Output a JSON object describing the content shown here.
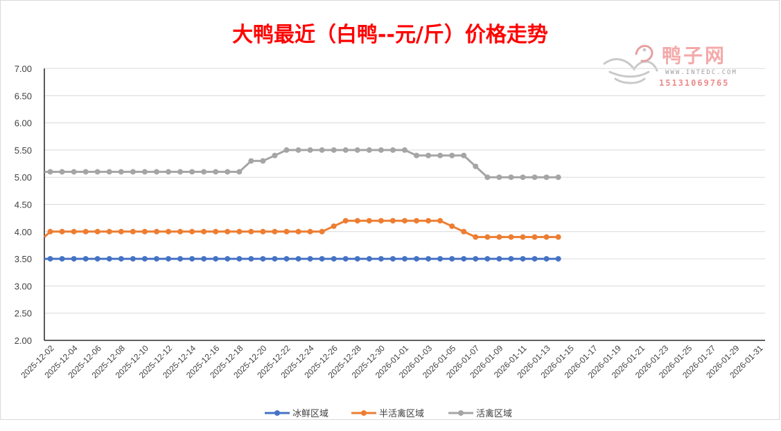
{
  "chart_data": {
    "type": "line",
    "title": "大鸭最近（白鸭--元/斤）价格走势",
    "xlabel": "",
    "ylabel": "",
    "ylim": [
      2.0,
      7.0
    ],
    "y_ticks": [
      "7.00",
      "6.50",
      "6.00",
      "5.50",
      "5.00",
      "4.50",
      "4.00",
      "3.50",
      "3.00",
      "2.50",
      "2.00"
    ],
    "x_start": "2025-12-02",
    "x_end": "2026-01-31",
    "x_tick_labels": [
      "2025-12-02",
      "2025-12-04",
      "2025-12-06",
      "2025-12-08",
      "2025-12-10",
      "2025-12-12",
      "2025-12-14",
      "2025-12-16",
      "2025-12-18",
      "2025-12-20",
      "2025-12-22",
      "2025-12-24",
      "2025-12-26",
      "2025-12-28",
      "2025-12-30",
      "2026-01-01",
      "2026-01-03",
      "2026-01-05",
      "2026-01-07",
      "2026-01-09",
      "2026-01-11",
      "2026-01-13",
      "2026-01-15",
      "2026-01-17",
      "2026-01-19",
      "2026-01-21",
      "2026-01-23",
      "2026-01-25",
      "2026-01-27",
      "2026-01-29",
      "2026-01-31"
    ],
    "grid": true,
    "legend_position": "bottom",
    "series": [
      {
        "name": "冰鲜区域",
        "color": "#4472c4",
        "points": [
          [
            "2025-12-02",
            3.5
          ],
          [
            "2025-12-03",
            3.5
          ],
          [
            "2025-12-04",
            3.5
          ],
          [
            "2025-12-05",
            3.5
          ],
          [
            "2025-12-06",
            3.5
          ],
          [
            "2025-12-07",
            3.5
          ],
          [
            "2025-12-08",
            3.5
          ],
          [
            "2025-12-09",
            3.5
          ],
          [
            "2025-12-10",
            3.5
          ],
          [
            "2025-12-11",
            3.5
          ],
          [
            "2025-12-12",
            3.5
          ],
          [
            "2025-12-13",
            3.5
          ],
          [
            "2025-12-14",
            3.5
          ],
          [
            "2025-12-15",
            3.5
          ],
          [
            "2025-12-16",
            3.5
          ],
          [
            "2025-12-17",
            3.5
          ],
          [
            "2025-12-18",
            3.5
          ],
          [
            "2025-12-19",
            3.5
          ],
          [
            "2025-12-20",
            3.5
          ],
          [
            "2025-12-21",
            3.5
          ],
          [
            "2025-12-22",
            3.5
          ],
          [
            "2025-12-23",
            3.5
          ],
          [
            "2025-12-24",
            3.5
          ],
          [
            "2025-12-25",
            3.5
          ],
          [
            "2025-12-26",
            3.5
          ],
          [
            "2025-12-27",
            3.5
          ],
          [
            "2025-12-28",
            3.5
          ],
          [
            "2025-12-29",
            3.5
          ],
          [
            "2025-12-30",
            3.5
          ],
          [
            "2025-12-31",
            3.5
          ],
          [
            "2026-01-01",
            3.5
          ],
          [
            "2026-01-02",
            3.5
          ],
          [
            "2026-01-03",
            3.5
          ],
          [
            "2026-01-04",
            3.5
          ],
          [
            "2026-01-05",
            3.5
          ],
          [
            "2026-01-06",
            3.5
          ],
          [
            "2026-01-07",
            3.5
          ],
          [
            "2026-01-08",
            3.5
          ],
          [
            "2026-01-09",
            3.5
          ],
          [
            "2026-01-10",
            3.5
          ],
          [
            "2026-01-11",
            3.5
          ],
          [
            "2026-01-12",
            3.5
          ],
          [
            "2026-01-13",
            3.5
          ],
          [
            "2026-01-14",
            3.5
          ]
        ]
      },
      {
        "name": "半活禽区域",
        "color": "#ed7d31",
        "points": [
          [
            "2025-12-02",
            4.0
          ],
          [
            "2025-12-03",
            4.0
          ],
          [
            "2025-12-04",
            4.0
          ],
          [
            "2025-12-05",
            4.0
          ],
          [
            "2025-12-06",
            4.0
          ],
          [
            "2025-12-07",
            4.0
          ],
          [
            "2025-12-08",
            4.0
          ],
          [
            "2025-12-09",
            4.0
          ],
          [
            "2025-12-10",
            4.0
          ],
          [
            "2025-12-11",
            4.0
          ],
          [
            "2025-12-12",
            4.0
          ],
          [
            "2025-12-13",
            4.0
          ],
          [
            "2025-12-14",
            4.0
          ],
          [
            "2025-12-15",
            4.0
          ],
          [
            "2025-12-16",
            4.0
          ],
          [
            "2025-12-17",
            4.0
          ],
          [
            "2025-12-18",
            4.0
          ],
          [
            "2025-12-19",
            4.0
          ],
          [
            "2025-12-20",
            4.0
          ],
          [
            "2025-12-21",
            4.0
          ],
          [
            "2025-12-22",
            4.0
          ],
          [
            "2025-12-23",
            4.0
          ],
          [
            "2025-12-24",
            4.0
          ],
          [
            "2025-12-25",
            4.0
          ],
          [
            "2025-12-26",
            4.1
          ],
          [
            "2025-12-27",
            4.2
          ],
          [
            "2025-12-28",
            4.2
          ],
          [
            "2025-12-29",
            4.2
          ],
          [
            "2025-12-30",
            4.2
          ],
          [
            "2025-12-31",
            4.2
          ],
          [
            "2026-01-01",
            4.2
          ],
          [
            "2026-01-02",
            4.2
          ],
          [
            "2026-01-03",
            4.2
          ],
          [
            "2026-01-04",
            4.2
          ],
          [
            "2026-01-05",
            4.1
          ],
          [
            "2026-01-06",
            4.0
          ],
          [
            "2026-01-07",
            3.9
          ],
          [
            "2026-01-08",
            3.9
          ],
          [
            "2026-01-09",
            3.9
          ],
          [
            "2026-01-10",
            3.9
          ],
          [
            "2026-01-11",
            3.9
          ],
          [
            "2026-01-12",
            3.9
          ],
          [
            "2026-01-13",
            3.9
          ],
          [
            "2026-01-14",
            3.9
          ]
        ]
      },
      {
        "name": "活禽区域",
        "color": "#a5a5a5",
        "points": [
          [
            "2025-12-02",
            5.1
          ],
          [
            "2025-12-03",
            5.1
          ],
          [
            "2025-12-04",
            5.1
          ],
          [
            "2025-12-05",
            5.1
          ],
          [
            "2025-12-06",
            5.1
          ],
          [
            "2025-12-07",
            5.1
          ],
          [
            "2025-12-08",
            5.1
          ],
          [
            "2025-12-09",
            5.1
          ],
          [
            "2025-12-10",
            5.1
          ],
          [
            "2025-12-11",
            5.1
          ],
          [
            "2025-12-12",
            5.1
          ],
          [
            "2025-12-13",
            5.1
          ],
          [
            "2025-12-14",
            5.1
          ],
          [
            "2025-12-15",
            5.1
          ],
          [
            "2025-12-16",
            5.1
          ],
          [
            "2025-12-17",
            5.1
          ],
          [
            "2025-12-18",
            5.1
          ],
          [
            "2025-12-19",
            5.3
          ],
          [
            "2025-12-20",
            5.3
          ],
          [
            "2025-12-21",
            5.4
          ],
          [
            "2025-12-22",
            5.5
          ],
          [
            "2025-12-23",
            5.5
          ],
          [
            "2025-12-24",
            5.5
          ],
          [
            "2025-12-25",
            5.5
          ],
          [
            "2025-12-26",
            5.5
          ],
          [
            "2025-12-27",
            5.5
          ],
          [
            "2025-12-28",
            5.5
          ],
          [
            "2025-12-29",
            5.5
          ],
          [
            "2025-12-30",
            5.5
          ],
          [
            "2025-12-31",
            5.5
          ],
          [
            "2026-01-01",
            5.5
          ],
          [
            "2026-01-02",
            5.4
          ],
          [
            "2026-01-03",
            5.4
          ],
          [
            "2026-01-04",
            5.4
          ],
          [
            "2026-01-05",
            5.4
          ],
          [
            "2026-01-06",
            5.4
          ],
          [
            "2026-01-07",
            5.2
          ],
          [
            "2026-01-08",
            5.0
          ],
          [
            "2026-01-09",
            5.0
          ],
          [
            "2026-01-10",
            5.0
          ],
          [
            "2026-01-11",
            5.0
          ],
          [
            "2026-01-12",
            5.0
          ],
          [
            "2026-01-13",
            5.0
          ],
          [
            "2026-01-14",
            5.0
          ]
        ]
      }
    ]
  },
  "watermark": {
    "brand_text": "鸭子网",
    "site_text": "WWW.INTEDC.COM",
    "phone_text": "15131069765"
  }
}
